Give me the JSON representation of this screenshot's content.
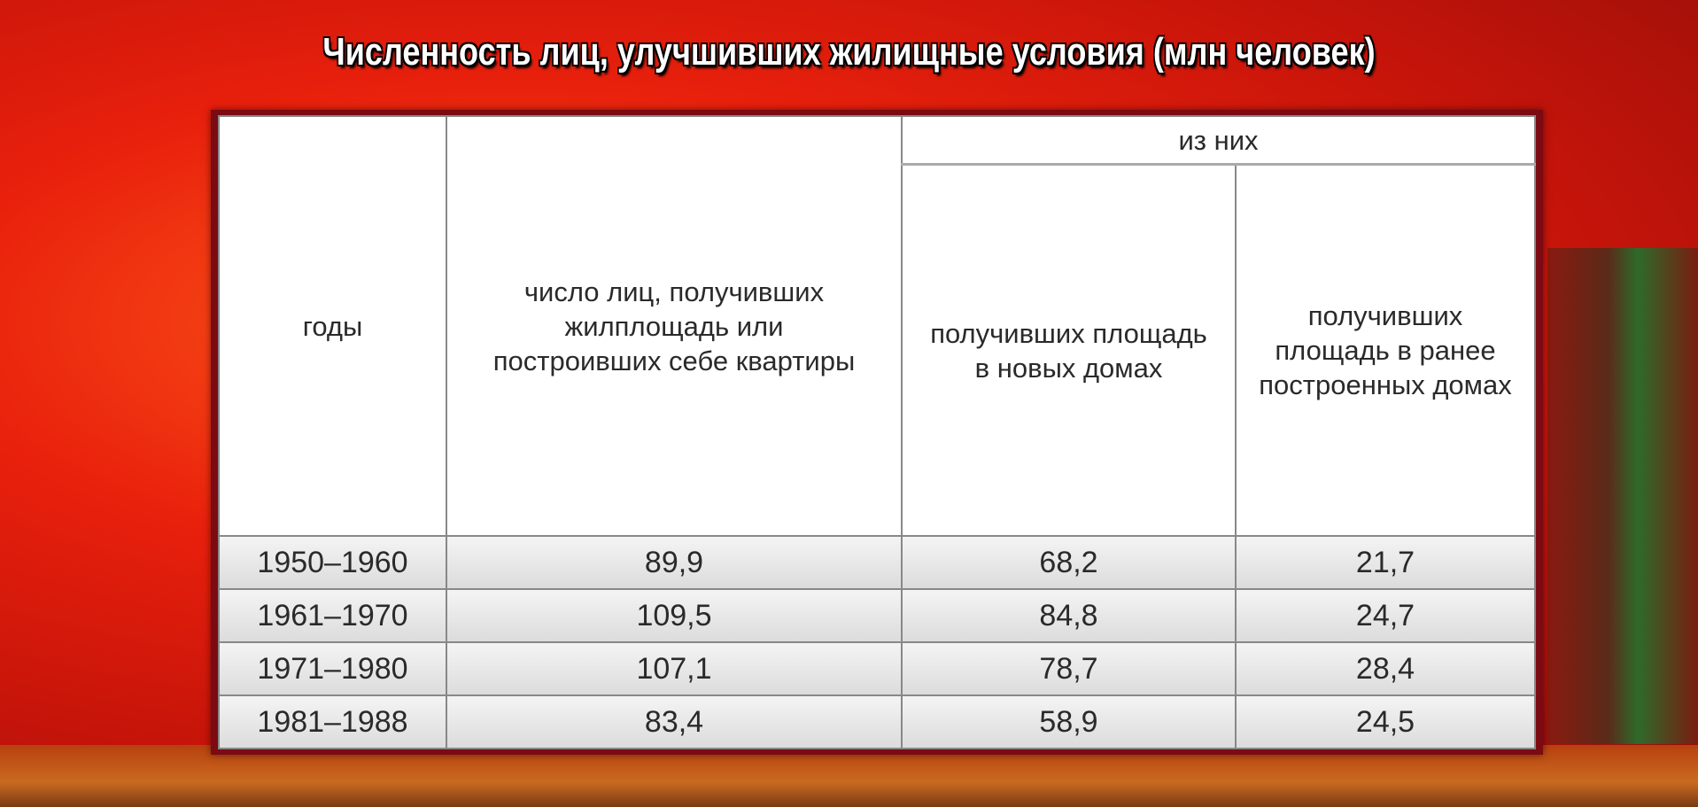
{
  "title": "Численность лиц, улучшивших жилищные условия (млн человек)",
  "table": {
    "headers": {
      "years": "годы",
      "total": "число лиц, получивших жилплощадь или построивших себе квартиры",
      "group": "из них",
      "new_homes": "получивших площадь в новых домах",
      "old_homes": "получивших площадь в ранее построенных домах"
    },
    "rows": [
      {
        "years": "1950–1960",
        "total": "89,9",
        "new_homes": "68,2",
        "old_homes": "21,7"
      },
      {
        "years": "1961–1970",
        "total": "109,5",
        "new_homes": "84,8",
        "old_homes": "24,7"
      },
      {
        "years": "1971–1980",
        "total": "107,1",
        "new_homes": "78,7",
        "old_homes": "28,4"
      },
      {
        "years": "1981–1988",
        "total": "83,4",
        "new_homes": "58,9",
        "old_homes": "24,5"
      }
    ]
  }
}
